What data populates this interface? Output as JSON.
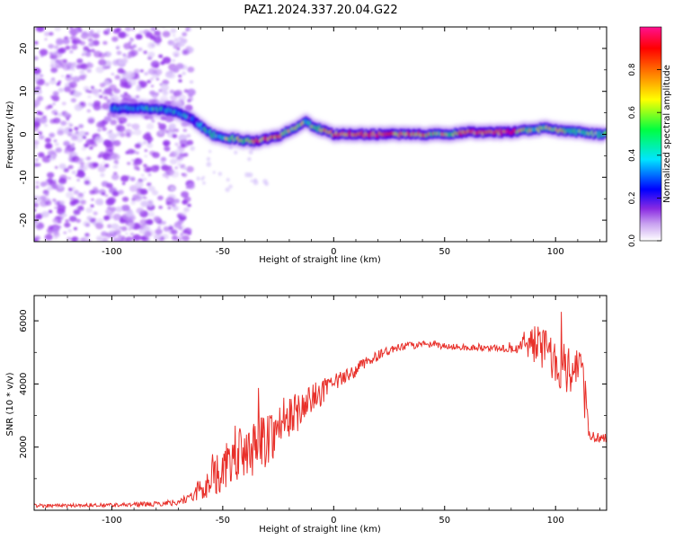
{
  "title": "PAZ1.2024.337.20.04.G22",
  "chart_data": [
    {
      "type": "heatmap",
      "xlabel": "Height of straight line (km)",
      "ylabel": "Frequency (Hz)",
      "xlim": [
        -135,
        123
      ],
      "ylim": [
        -25,
        25
      ],
      "x_ticks": [
        -100,
        -50,
        0,
        50,
        100
      ],
      "x_tick_labels": [
        "-100",
        "-50",
        "0",
        "50",
        "100"
      ],
      "y_ticks": [
        -20,
        -10,
        0,
        10,
        20
      ],
      "y_tick_labels": [
        "-20",
        "-10",
        "0",
        "10",
        "20"
      ],
      "colorbar": {
        "label": "Normalized spectral amplitude",
        "range": [
          0,
          1
        ],
        "ticks": [
          0.0,
          0.2,
          0.4,
          0.6,
          0.8
        ],
        "tick_labels": [
          "0.0",
          "0.2",
          "0.4",
          "0.6",
          "0.8"
        ],
        "colormap": [
          "#ffffff",
          "#8a2be2",
          "#0000ff",
          "#00e5ff",
          "#00ff40",
          "#ffff00",
          "#ff8000",
          "#ff0000",
          "#ff1090"
        ]
      },
      "ridge": {
        "x": [
          -100,
          -90,
          -80,
          -70,
          -65,
          -60,
          -55,
          -50,
          -45,
          -40,
          -35,
          -30,
          -25,
          -20,
          -15,
          -12,
          -10,
          -5,
          0,
          10,
          20,
          30,
          40,
          50,
          60,
          70,
          80,
          85,
          90,
          95,
          100,
          110,
          120
        ],
        "frequency": [
          6,
          6,
          6,
          5,
          4,
          2,
          0,
          -1,
          -1,
          -1.5,
          -1.5,
          -1,
          -0.5,
          1,
          2,
          3,
          2,
          1,
          0,
          0,
          0,
          0,
          0,
          0,
          0.5,
          0.5,
          0.5,
          1,
          1,
          1.5,
          1,
          0.5,
          0
        ],
        "amplitude": [
          0.3,
          0.35,
          0.4,
          0.35,
          0.3,
          0.35,
          0.45,
          0.5,
          0.55,
          0.6,
          0.75,
          0.8,
          0.7,
          0.6,
          0.55,
          0.5,
          0.6,
          0.7,
          0.75,
          0.85,
          0.9,
          0.75,
          0.7,
          0.6,
          0.8,
          0.85,
          0.9,
          0.6,
          0.55,
          0.6,
          0.6,
          0.55,
          0.5
        ]
      },
      "noise_region_km": [
        -135,
        -68
      ]
    },
    {
      "type": "line",
      "xlabel": "Height of straight line (km)",
      "ylabel": "SNR (10 * v/v)",
      "xlim": [
        -135,
        123
      ],
      "ylim": [
        0,
        6800
      ],
      "x_ticks": [
        -100,
        -50,
        0,
        50,
        100
      ],
      "x_tick_labels": [
        "-100",
        "-50",
        "0",
        "50",
        "100"
      ],
      "y_ticks": [
        2000,
        4000,
        6000
      ],
      "y_tick_labels": [
        "2000",
        "4000",
        "6000"
      ],
      "color": "#e8302a",
      "series": [
        {
          "x": [
            -135,
            -120,
            -100,
            -80,
            -70,
            -65,
            -60,
            -55,
            -50,
            -45,
            -40,
            -35,
            -30,
            -25,
            -20,
            -15,
            -10,
            -5,
            0,
            5,
            10,
            15,
            20,
            25,
            30,
            35,
            40,
            50,
            60,
            70,
            80,
            85,
            90,
            95,
            100,
            105,
            110,
            113,
            115,
            120,
            123
          ],
          "y": [
            150,
            150,
            170,
            200,
            260,
            400,
            650,
            1000,
            1300,
            1600,
            1800,
            2000,
            2300,
            2600,
            2900,
            3200,
            3500,
            3750,
            4000,
            4200,
            4450,
            4700,
            4900,
            5050,
            5150,
            5220,
            5250,
            5200,
            5150,
            5150,
            5100,
            5200,
            5300,
            5100,
            4800,
            4500,
            4600,
            4500,
            2400,
            2300,
            2300
          ],
          "noise_amplitude": [
            60,
            60,
            60,
            80,
            100,
            150,
            400,
            600,
            700,
            800,
            800,
            900,
            900,
            800,
            700,
            600,
            500,
            400,
            300,
            250,
            220,
            180,
            160,
            140,
            130,
            120,
            110,
            100,
            100,
            100,
            120,
            400,
            600,
            700,
            800,
            900,
            600,
            300,
            200,
            150,
            150
          ]
        }
      ]
    }
  ]
}
